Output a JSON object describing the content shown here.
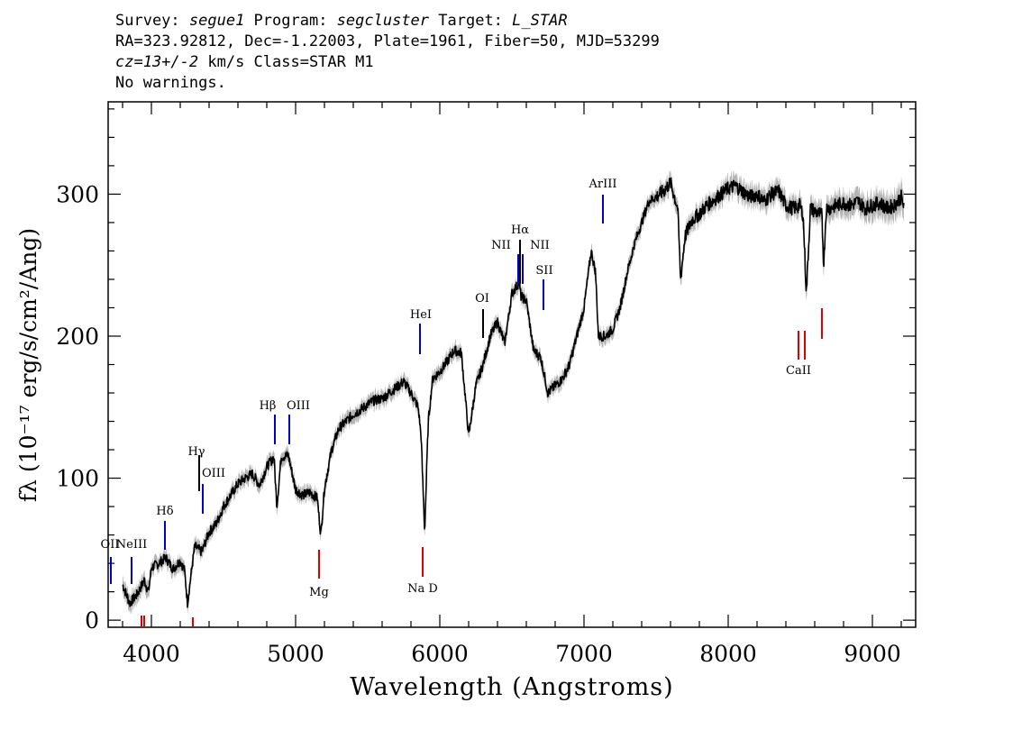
{
  "header": {
    "survey_label": "Survey: ",
    "survey_value": "segue1",
    "program_label": " Program: ",
    "program_value": "segcluster",
    "target_label": " Target: ",
    "target_value": "L_STAR",
    "line2": "RA=323.92812, Dec=-1.22003, Plate=1961, Fiber=50, MJD=53299",
    "cz_value": "cz=13+/-2",
    "cz_rest": " km/s Class=STAR M1",
    "line4": "No warnings."
  },
  "chart_data": {
    "type": "line",
    "xlabel": "Wavelength (Angstroms)",
    "ylabel": "fλ (10⁻¹⁷ erg/s/cm²/Ang)",
    "xlim": [
      3700,
      9300
    ],
    "ylim": [
      -5,
      365
    ],
    "xticks": [
      4000,
      5000,
      6000,
      7000,
      8000,
      9000
    ],
    "yticks": [
      0,
      100,
      200,
      300
    ],
    "colors": {
      "spectrum": "#000000",
      "error_band": "#b4b4b4",
      "emission": "#0000cc",
      "absorption": "#dd0000"
    },
    "series": [
      {
        "x": [
          3800,
          3850,
          3900,
          3950,
          3980,
          4000,
          4050,
          4100,
          4150,
          4200,
          4230,
          4250,
          4300,
          4350,
          4400,
          4450,
          4500,
          4550,
          4600,
          4650,
          4700,
          4750,
          4800,
          4850,
          4870,
          4900,
          4950,
          5000,
          5050,
          5100,
          5150,
          5175,
          5200,
          5250,
          5300,
          5350,
          5400,
          5450,
          5500,
          5550,
          5600,
          5650,
          5700,
          5750,
          5800,
          5850,
          5870,
          5895,
          5920,
          5950,
          6000,
          6050,
          6100,
          6150,
          6200,
          6250,
          6300,
          6350,
          6400,
          6450,
          6500,
          6550,
          6563,
          6600,
          6650,
          6700,
          6750,
          6800,
          6850,
          6900,
          6950,
          7000,
          7050,
          7080,
          7100,
          7150,
          7200,
          7250,
          7300,
          7350,
          7400,
          7450,
          7500,
          7550,
          7600,
          7650,
          7670,
          7700,
          7750,
          7800,
          7850,
          7900,
          7950,
          8000,
          8050,
          8100,
          8150,
          8200,
          8250,
          8300,
          8350,
          8400,
          8450,
          8498,
          8520,
          8542,
          8570,
          8600,
          8650,
          8662,
          8680,
          8700,
          8750,
          8800,
          8850,
          8900,
          8950,
          9000,
          9050,
          9100,
          9150,
          9200,
          9220
        ],
        "y": [
          25,
          12,
          18,
          28,
          20,
          37,
          40,
          44,
          36,
          42,
          35,
          12,
          52,
          48,
          62,
          68,
          80,
          88,
          96,
          100,
          103,
          95,
          108,
          115,
          80,
          115,
          116,
          92,
          88,
          90,
          86,
          60,
          93,
          120,
          135,
          140,
          145,
          148,
          152,
          155,
          156,
          160,
          164,
          168,
          160,
          150,
          130,
          62,
          140,
          170,
          175,
          182,
          190,
          188,
          130,
          165,
          180,
          200,
          210,
          195,
          230,
          238,
          228,
          225,
          190,
          185,
          160,
          165,
          170,
          180,
          200,
          220,
          260,
          245,
          200,
          200,
          205,
          220,
          245,
          265,
          280,
          295,
          298,
          302,
          308,
          290,
          240,
          270,
          282,
          286,
          292,
          296,
          300,
          304,
          306,
          302,
          298,
          300,
          295,
          300,
          302,
          292,
          290,
          292,
          285,
          230,
          290,
          288,
          285,
          250,
          290,
          290,
          292,
          294,
          292,
          295,
          290,
          292,
          294,
          290,
          292,
          298,
          290
        ],
        "error": [
          6,
          6,
          6,
          6,
          6,
          5,
          5,
          5,
          5,
          5,
          5,
          5,
          5,
          5,
          5,
          5,
          5,
          5,
          5,
          5,
          5,
          5,
          5,
          5,
          5,
          5,
          5,
          5,
          5,
          5,
          5,
          5,
          5,
          5,
          5,
          5,
          5,
          5,
          5,
          5,
          5,
          5,
          5,
          5,
          5,
          5,
          5,
          5,
          5,
          5,
          5,
          5,
          5,
          5,
          5,
          5,
          5,
          5,
          5,
          5,
          5,
          5,
          5,
          5,
          5,
          5,
          5,
          5,
          5,
          5,
          5,
          5,
          5,
          5,
          5,
          5,
          5,
          5,
          5,
          5,
          5,
          5,
          5,
          6,
          6,
          6,
          6,
          6,
          6,
          6,
          6,
          6,
          6,
          7,
          7,
          7,
          7,
          7,
          7,
          7,
          7,
          7,
          7,
          7,
          7,
          7,
          7,
          7,
          7,
          7,
          7,
          8,
          8,
          8,
          8,
          8,
          8,
          9,
          9,
          9,
          9,
          10,
          10
        ]
      }
    ],
    "emission_lines": [
      {
        "label": "OII",
        "x": 3727
      },
      {
        "label": "NeIII",
        "x": 3869
      },
      {
        "label": "Hδ",
        "x": 4102
      },
      {
        "label": "Hγ",
        "x": 4340
      },
      {
        "label": "OIII",
        "x": 4363
      },
      {
        "label": "Hβ",
        "x": 4861
      },
      {
        "label": "OIII",
        "x": 4959
      },
      {
        "label": "HeI",
        "x": 5876
      },
      {
        "label": "OI",
        "x": 6300
      },
      {
        "label": "NII",
        "x": 6548
      },
      {
        "label": "Hα",
        "x": 6563
      },
      {
        "label": "NII",
        "x": 6583
      },
      {
        "label": "SII",
        "x": 6716
      },
      {
        "label": "ArIII",
        "x": 7136
      }
    ],
    "absorption_lines": [
      {
        "label": "Mg",
        "x": 5175
      },
      {
        "label": "Na D",
        "x": 5894
      },
      {
        "label": "CaII",
        "x": 8498
      },
      {
        "label": "",
        "x": 3934
      },
      {
        "label": "",
        "x": 3969
      },
      {
        "label": "",
        "x": 4304
      }
    ]
  }
}
